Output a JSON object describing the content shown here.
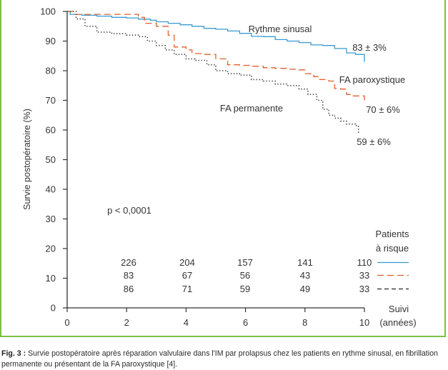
{
  "chart_data": {
    "type": "line",
    "ylabel": "Survie postopératoire (%)",
    "xlabel": "Suivi (années)",
    "xlabel_line1": "Suivi",
    "xlabel_line2": "(années)",
    "xlim": [
      0,
      10
    ],
    "ylim": [
      0,
      100
    ],
    "x_ticks": [
      "0",
      "2",
      "4",
      "6",
      "8",
      "10"
    ],
    "y_ticks": [
      "0",
      "10",
      "20",
      "30",
      "40",
      "50",
      "60",
      "70",
      "80",
      "90",
      "100"
    ],
    "grid": false,
    "series": [
      {
        "name": "Rythme sinusal",
        "color": "#3a9ad3",
        "style": "solid",
        "end_label": "83 ± 3%",
        "x": [
          0,
          0.1,
          0.5,
          1,
          1.5,
          2,
          2.4,
          2.8,
          3,
          3.4,
          3.8,
          4.2,
          4.6,
          5,
          5.4,
          5.8,
          6.2,
          6.6,
          7,
          7.4,
          7.8,
          8.2,
          8.6,
          9,
          9.4,
          9.7,
          10
        ],
        "y": [
          100,
          99,
          98.7,
          98.4,
          98,
          97.8,
          97.4,
          97,
          96.5,
          96,
          95.5,
          95,
          94.3,
          94,
          93.4,
          92.6,
          91.6,
          91.5,
          90.5,
          90,
          89.5,
          88.7,
          88.5,
          87.5,
          86,
          85.5,
          83
        ]
      },
      {
        "name": "FA paroxystique",
        "color": "#e35d2a",
        "style": "dashed",
        "end_label": "70 ± 6%",
        "x": [
          0,
          0.2,
          1,
          2,
          2.4,
          2.6,
          3,
          3.4,
          3.6,
          4,
          4.2,
          4.6,
          5,
          5.4,
          5.8,
          6.2,
          6.6,
          7,
          7.4,
          7.8,
          8,
          8.3,
          8.5,
          8.8,
          9,
          9.2,
          9.4,
          9.6,
          10
        ],
        "y": [
          100,
          99,
          99,
          99,
          98,
          96,
          95,
          92,
          88,
          87,
          85.8,
          85.5,
          84,
          82,
          81.8,
          81.5,
          81,
          80.8,
          80.5,
          80.3,
          79,
          78,
          77,
          76.5,
          74,
          73.8,
          72,
          71.5,
          70
        ]
      },
      {
        "name": "FA permanente",
        "color": "#444444",
        "style": "dotted",
        "end_label": "59 ± 6%",
        "x": [
          0,
          0.3,
          0.6,
          1,
          1.5,
          2,
          2.4,
          2.7,
          3,
          3.3,
          3.6,
          4,
          4.3,
          4.7,
          5,
          5.4,
          5.8,
          6.2,
          6.6,
          7,
          7.4,
          7.8,
          8.1,
          8.4,
          8.6,
          8.8,
          9,
          9.2,
          9.4,
          9.7,
          9.8
        ],
        "y": [
          100,
          97.5,
          95,
          93,
          92.5,
          92,
          91.5,
          90,
          88.5,
          87,
          85.5,
          84,
          83.5,
          82,
          80,
          79,
          78.5,
          77,
          76.5,
          75.5,
          75,
          73.8,
          72,
          70,
          67,
          65,
          64,
          63,
          62,
          61.5,
          59
        ]
      }
    ],
    "annotations": {
      "p_value": "p < 0,0001",
      "series_labels": [
        "Rythme sinusal",
        "FA paroxystique",
        "FA permanente"
      ]
    },
    "risk_table": {
      "title_line1": "Patients",
      "title_line2": "à risque",
      "rows": [
        {
          "values": [
            "226",
            "204",
            "157",
            "141",
            "110"
          ],
          "style": "solid"
        },
        {
          "values": [
            "83",
            "67",
            "56",
            "43",
            "33"
          ],
          "style": "dashed"
        },
        {
          "values": [
            "86",
            "71",
            "59",
            "49",
            "33"
          ],
          "style": "dotted"
        }
      ]
    }
  },
  "caption": {
    "label": "Fig. 3 :",
    "text": "Survie postopératoire après réparation valvulaire dans l'IM par prolapsus chez les patients en rythme sinusal, en fibrillation permanente ou présentant de la FA paroxystique [4]."
  },
  "colors": {
    "frame": "#7dc043",
    "axis": "#333333",
    "text": "#333333"
  }
}
